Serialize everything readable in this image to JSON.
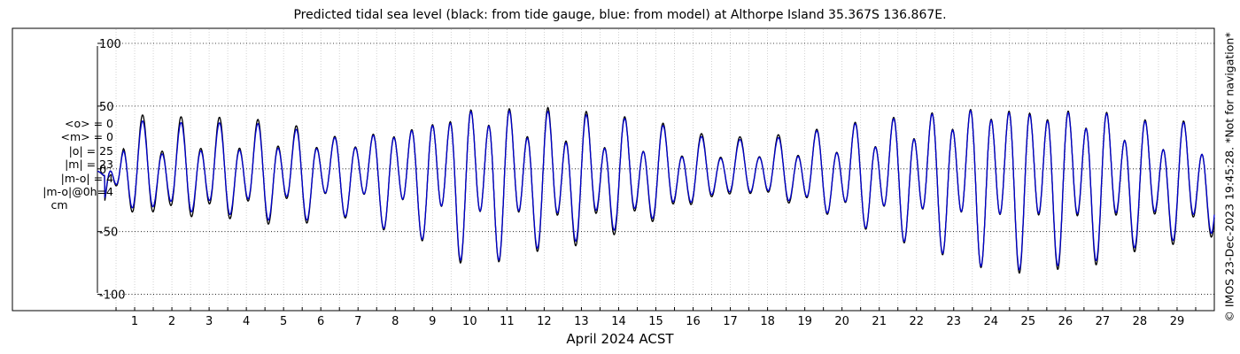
{
  "chart_data": {
    "type": "line",
    "title": "Predicted tidal sea level (black: from tide gauge, blue: from model) at Althorpe Island 35.367S 136.867E.",
    "xlabel": "April 2024 ACST",
    "ylabel": "",
    "x_ticks": [
      "1",
      "2",
      "3",
      "4",
      "5",
      "6",
      "7",
      "8",
      "9",
      "10",
      "11",
      "12",
      "13",
      "14",
      "15",
      "16",
      "17",
      "18",
      "19",
      "20",
      "21",
      "22",
      "23",
      "24",
      "25",
      "26",
      "27",
      "28",
      "29"
    ],
    "y_ticks": [
      "100",
      "50",
      "0",
      "-50",
      "-100"
    ],
    "xlim_days": [
      0.0,
      30.0
    ],
    "ylim": [
      -113,
      112
    ],
    "grid": true,
    "stats": [
      "<o> = 0",
      "<m> = 0",
      "|o| = 25",
      "|m| = 23",
      "|m-o| = 4",
      "|m-o|@0h=4",
      "cm"
    ],
    "series": [
      {
        "color": "#000000",
        "envelope": [
          [
            0.0,
            0.0
          ],
          [
            0.2,
            -20
          ],
          [
            0.7,
            40
          ],
          [
            1.2,
            38
          ],
          [
            1.7,
            35
          ],
          [
            2.2,
            37
          ],
          [
            2.7,
            38
          ],
          [
            3.2,
            38
          ],
          [
            3.7,
            36
          ],
          [
            4.2,
            38
          ],
          [
            4.7,
            38
          ],
          [
            5.2,
            36
          ],
          [
            5.7,
            35
          ],
          [
            6.2,
            30
          ],
          [
            6.7,
            30
          ],
          [
            7.2,
            33
          ],
          [
            7.7,
            37
          ],
          [
            8.2,
            42
          ],
          [
            8.7,
            43
          ],
          [
            9.2,
            52
          ],
          [
            9.7,
            58
          ],
          [
            10.2,
            58
          ],
          [
            10.7,
            58
          ],
          [
            11.2,
            55
          ],
          [
            11.7,
            50
          ],
          [
            12.2,
            55
          ],
          [
            12.7,
            50
          ],
          [
            13.2,
            48
          ],
          [
            13.7,
            45
          ],
          [
            14.2,
            42
          ],
          [
            14.7,
            40
          ],
          [
            15.2,
            35
          ],
          [
            15.7,
            30
          ],
          [
            16.2,
            26
          ],
          [
            16.7,
            24
          ],
          [
            17.2,
            22
          ],
          [
            17.7,
            22
          ],
          [
            18.2,
            24
          ],
          [
            18.7,
            27
          ],
          [
            19.2,
            30
          ],
          [
            19.7,
            32
          ],
          [
            20.2,
            37
          ],
          [
            20.7,
            40
          ],
          [
            21.2,
            43
          ],
          [
            21.7,
            47
          ],
          [
            22.2,
            50
          ],
          [
            22.7,
            53
          ],
          [
            23.2,
            57
          ],
          [
            23.7,
            60
          ],
          [
            24.2,
            62
          ],
          [
            24.7,
            63
          ],
          [
            25.2,
            62
          ],
          [
            25.7,
            60
          ],
          [
            26.2,
            60
          ],
          [
            26.7,
            58
          ],
          [
            27.2,
            55
          ],
          [
            27.7,
            50
          ],
          [
            28.2,
            47
          ],
          [
            28.7,
            45
          ],
          [
            29.2,
            45
          ],
          [
            29.7,
            44
          ],
          [
            30.0,
            40
          ]
        ],
        "mean_offset": [
          [
            0.0,
            -2
          ],
          [
            3,
            -2
          ],
          [
            6,
            -4
          ],
          [
            9,
            -6
          ],
          [
            12,
            -8
          ],
          [
            14,
            -7
          ],
          [
            16,
            -3
          ],
          [
            17.5,
            0
          ],
          [
            19,
            -3
          ],
          [
            21,
            -6
          ],
          [
            24,
            -8
          ],
          [
            27,
            -10
          ],
          [
            30,
            -12
          ]
        ]
      },
      {
        "color": "#0000cc",
        "envelope": [
          [
            0.0,
            0.0
          ],
          [
            0.2,
            -18
          ],
          [
            0.7,
            36
          ],
          [
            1.2,
            34
          ],
          [
            1.7,
            30
          ],
          [
            2.2,
            33
          ],
          [
            2.7,
            34
          ],
          [
            3.2,
            34
          ],
          [
            3.7,
            33
          ],
          [
            4.2,
            35
          ],
          [
            4.7,
            35
          ],
          [
            5.2,
            33
          ],
          [
            5.7,
            33
          ],
          [
            6.2,
            29
          ],
          [
            6.7,
            29
          ],
          [
            7.2,
            32
          ],
          [
            7.7,
            36
          ],
          [
            8.2,
            41
          ],
          [
            8.7,
            42
          ],
          [
            9.2,
            51
          ],
          [
            9.7,
            56
          ],
          [
            10.2,
            57
          ],
          [
            10.7,
            57
          ],
          [
            11.2,
            53
          ],
          [
            11.7,
            48
          ],
          [
            12.2,
            52
          ],
          [
            12.7,
            47
          ],
          [
            13.2,
            45
          ],
          [
            13.7,
            42
          ],
          [
            14.2,
            40
          ],
          [
            14.7,
            38
          ],
          [
            15.2,
            33
          ],
          [
            15.7,
            28
          ],
          [
            16.2,
            24
          ],
          [
            16.7,
            22
          ],
          [
            17.2,
            20
          ],
          [
            17.7,
            21
          ],
          [
            18.2,
            22
          ],
          [
            18.7,
            25
          ],
          [
            19.2,
            29
          ],
          [
            19.7,
            31
          ],
          [
            20.2,
            36
          ],
          [
            20.7,
            39
          ],
          [
            21.2,
            42
          ],
          [
            21.7,
            46
          ],
          [
            22.2,
            49
          ],
          [
            22.7,
            52
          ],
          [
            23.2,
            56
          ],
          [
            23.7,
            59
          ],
          [
            24.2,
            61
          ],
          [
            24.7,
            61
          ],
          [
            25.2,
            60
          ],
          [
            25.7,
            58
          ],
          [
            26.2,
            58
          ],
          [
            26.7,
            56
          ],
          [
            27.2,
            53
          ],
          [
            27.7,
            48
          ],
          [
            28.2,
            45
          ],
          [
            28.7,
            43
          ],
          [
            29.2,
            43
          ],
          [
            29.7,
            42
          ],
          [
            30.0,
            38
          ]
        ],
        "mean_offset": [
          [
            0.0,
            -2
          ],
          [
            3,
            -2
          ],
          [
            6,
            -4
          ],
          [
            9,
            -6
          ],
          [
            12,
            -8
          ],
          [
            14,
            -6
          ],
          [
            16,
            -3
          ],
          [
            17.5,
            0
          ],
          [
            19,
            -3
          ],
          [
            21,
            -6
          ],
          [
            24,
            -8
          ],
          [
            27,
            -9
          ],
          [
            30,
            -11
          ]
        ]
      }
    ]
  },
  "credit": "© IMOS 23-Dec-2023 19:45:28. *Not for navigation*"
}
